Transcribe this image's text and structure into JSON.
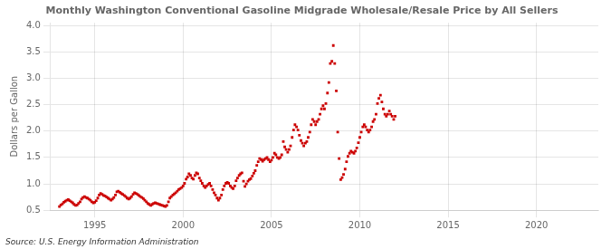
{
  "chart_data": {
    "type": "scatter",
    "title": "Monthly Washington Conventional Gasoline Midgrade Wholesale/Resale Price by All Sellers",
    "y_label": "Dollars per Gallon",
    "annotations": [
      "Source: U.S. Energy Information Administration"
    ],
    "color": "#cc0000",
    "marker": "square",
    "grid": true,
    "xlim": [
      1992.5,
      2023.5
    ],
    "ylim": [
      0.5,
      4.05
    ],
    "xticks": [
      1995,
      2000,
      2005,
      2010,
      2015,
      2020
    ],
    "yticks": [
      0.5,
      {
        "value": 1.0,
        "label": "1.0"
      },
      1.5,
      {
        "value": 2.0,
        "label": "2.0"
      },
      2.5,
      {
        "value": 3.0,
        "label": "3.0"
      },
      3.5,
      {
        "value": 4.0,
        "label": "4.0"
      }
    ],
    "x": [
      1993.0,
      1993.08,
      1993.17,
      1993.25,
      1993.33,
      1993.42,
      1993.5,
      1993.58,
      1993.67,
      1993.75,
      1993.83,
      1993.92,
      1994.0,
      1994.08,
      1994.17,
      1994.25,
      1994.33,
      1994.42,
      1994.5,
      1994.58,
      1994.67,
      1994.75,
      1994.83,
      1994.92,
      1995.0,
      1995.08,
      1995.17,
      1995.25,
      1995.33,
      1995.42,
      1995.5,
      1995.58,
      1995.67,
      1995.75,
      1995.83,
      1995.92,
      1996.0,
      1996.08,
      1996.17,
      1996.25,
      1996.33,
      1996.42,
      1996.5,
      1996.58,
      1996.67,
      1996.75,
      1996.83,
      1996.92,
      1997.0,
      1997.08,
      1997.17,
      1997.25,
      1997.33,
      1997.42,
      1997.5,
      1997.58,
      1997.67,
      1997.75,
      1997.83,
      1997.92,
      1998.0,
      1998.08,
      1998.17,
      1998.25,
      1998.33,
      1998.42,
      1998.5,
      1998.58,
      1998.67,
      1998.75,
      1998.83,
      1998.92,
      1999.0,
      1999.08,
      1999.17,
      1999.25,
      1999.33,
      1999.42,
      1999.5,
      1999.58,
      1999.67,
      1999.75,
      1999.83,
      1999.92,
      2000.0,
      2000.08,
      2000.17,
      2000.25,
      2000.33,
      2000.42,
      2000.5,
      2000.58,
      2000.67,
      2000.75,
      2000.83,
      2000.92,
      2001.0,
      2001.08,
      2001.17,
      2001.25,
      2001.33,
      2001.42,
      2001.5,
      2001.58,
      2001.67,
      2001.75,
      2001.83,
      2001.92,
      2002.0,
      2002.08,
      2002.17,
      2002.25,
      2002.33,
      2002.42,
      2002.5,
      2002.58,
      2002.67,
      2002.75,
      2002.83,
      2002.92,
      2003.0,
      2003.08,
      2003.17,
      2003.25,
      2003.33,
      2003.42,
      2003.5,
      2003.58,
      2003.67,
      2003.75,
      2003.83,
      2003.92,
      2004.0,
      2004.08,
      2004.17,
      2004.25,
      2004.33,
      2004.42,
      2004.5,
      2004.58,
      2004.67,
      2004.75,
      2004.83,
      2004.92,
      2005.0,
      2005.08,
      2005.17,
      2005.25,
      2005.33,
      2005.42,
      2005.5,
      2005.58,
      2005.67,
      2005.75,
      2005.83,
      2005.92,
      2006.0,
      2006.08,
      2006.17,
      2006.25,
      2006.33,
      2006.42,
      2006.5,
      2006.58,
      2006.67,
      2006.75,
      2006.83,
      2006.92,
      2007.0,
      2007.08,
      2007.17,
      2007.25,
      2007.33,
      2007.42,
      2007.5,
      2007.58,
      2007.67,
      2007.75,
      2007.83,
      2007.92,
      2008.0,
      2008.08,
      2008.17,
      2008.25,
      2008.33,
      2008.42,
      2008.5,
      2008.58,
      2008.67,
      2008.75,
      2008.83,
      2008.92,
      2009.0,
      2009.08,
      2009.17,
      2009.25,
      2009.33,
      2009.42,
      2009.5,
      2009.58,
      2009.67,
      2009.75,
      2009.83,
      2009.92,
      2010.0,
      2010.08,
      2010.17,
      2010.25,
      2010.33,
      2010.42,
      2010.5,
      2010.58,
      2010.67,
      2010.75,
      2010.83,
      2010.92,
      2011.0,
      2011.08,
      2011.17,
      2011.25,
      2011.33,
      2011.42,
      2011.5,
      2011.58,
      2011.67,
      2011.75,
      2011.83,
      2011.92,
      2012.0
    ],
    "values": [
      0.57,
      0.6,
      0.62,
      0.65,
      0.67,
      0.69,
      0.7,
      0.68,
      0.66,
      0.64,
      0.61,
      0.59,
      0.6,
      0.63,
      0.66,
      0.71,
      0.74,
      0.76,
      0.74,
      0.73,
      0.71,
      0.69,
      0.66,
      0.64,
      0.65,
      0.68,
      0.73,
      0.79,
      0.82,
      0.8,
      0.78,
      0.77,
      0.75,
      0.73,
      0.71,
      0.69,
      0.71,
      0.74,
      0.79,
      0.85,
      0.86,
      0.84,
      0.82,
      0.8,
      0.78,
      0.76,
      0.73,
      0.71,
      0.73,
      0.76,
      0.8,
      0.83,
      0.82,
      0.8,
      0.78,
      0.76,
      0.74,
      0.72,
      0.69,
      0.66,
      0.63,
      0.61,
      0.59,
      0.61,
      0.63,
      0.64,
      0.63,
      0.62,
      0.61,
      0.6,
      0.59,
      0.58,
      0.57,
      0.59,
      0.66,
      0.73,
      0.76,
      0.79,
      0.81,
      0.83,
      0.86,
      0.89,
      0.91,
      0.93,
      0.96,
      1.01,
      1.09,
      1.13,
      1.19,
      1.16,
      1.11,
      1.09,
      1.16,
      1.21,
      1.19,
      1.11,
      1.06,
      1.01,
      0.96,
      0.93,
      0.96,
      0.99,
      1.01,
      0.96,
      0.89,
      0.83,
      0.79,
      0.73,
      0.69,
      0.73,
      0.79,
      0.89,
      0.96,
      1.01,
      1.03,
      1.01,
      0.96,
      0.93,
      0.91,
      0.96,
      1.06,
      1.11,
      1.16,
      1.19,
      1.21,
      1.05,
      0.95,
      1.0,
      1.05,
      1.08,
      1.1,
      1.15,
      1.2,
      1.25,
      1.35,
      1.42,
      1.48,
      1.46,
      1.43,
      1.46,
      1.48,
      1.5,
      1.46,
      1.42,
      1.45,
      1.5,
      1.58,
      1.55,
      1.5,
      1.48,
      1.5,
      1.55,
      1.8,
      1.7,
      1.65,
      1.6,
      1.65,
      1.72,
      1.88,
      2.02,
      2.12,
      2.08,
      2.02,
      1.92,
      1.82,
      1.77,
      1.72,
      1.77,
      1.8,
      1.88,
      1.98,
      2.12,
      2.22,
      2.18,
      2.12,
      2.18,
      2.22,
      2.32,
      2.42,
      2.48,
      2.42,
      2.52,
      2.72,
      2.92,
      3.28,
      3.32,
      3.62,
      3.28,
      2.76,
      1.98,
      1.48,
      1.08,
      1.12,
      1.18,
      1.28,
      1.42,
      1.52,
      1.58,
      1.62,
      1.6,
      1.58,
      1.62,
      1.68,
      1.78,
      1.88,
      1.98,
      2.08,
      2.12,
      2.08,
      2.02,
      1.98,
      2.02,
      2.08,
      2.18,
      2.22,
      2.32,
      2.52,
      2.62,
      2.68,
      2.55,
      2.42,
      2.32,
      2.28,
      2.32,
      2.38,
      2.32,
      2.28,
      2.22,
      2.28
    ]
  }
}
